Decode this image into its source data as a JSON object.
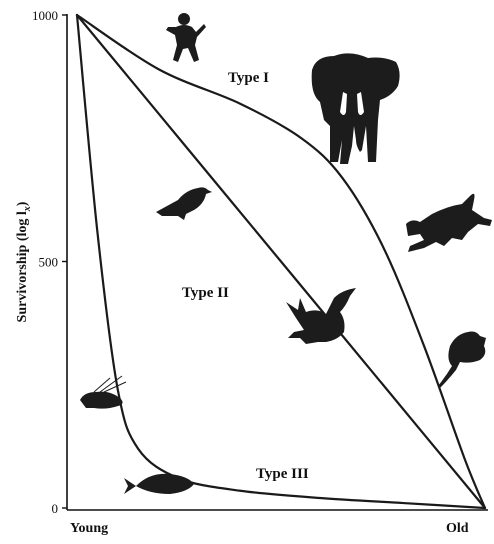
{
  "chart_data": {
    "type": "line",
    "title": "",
    "ylabel": "Survivorship (log l",
    "ylabel_sub": "x",
    "ylabel_close": ")",
    "xlabel": "",
    "x_tick_labels": [
      "Young",
      "Old"
    ],
    "y_ticks": [
      0,
      500,
      1000
    ],
    "y_tick_labels": [
      "0",
      "500",
      "1000"
    ],
    "ylim": [
      0,
      1000
    ],
    "xlim": [
      0,
      1
    ],
    "grid": false,
    "series": [
      {
        "name": "Type I",
        "x": [
          0,
          0.2,
          0.4,
          0.55,
          0.65,
          0.75,
          0.85,
          0.95,
          1.0
        ],
        "y": [
          1000,
          890,
          820,
          750,
          670,
          530,
          330,
          100,
          0
        ]
      },
      {
        "name": "Type II",
        "x": [
          0,
          0.25,
          0.5,
          0.75,
          1.0
        ],
        "y": [
          1000,
          750,
          500,
          250,
          0
        ]
      },
      {
        "name": "Type III",
        "x": [
          0,
          0.05,
          0.1,
          0.15,
          0.25,
          0.4,
          0.6,
          0.8,
          1.0
        ],
        "y": [
          1000,
          560,
          240,
          120,
          60,
          35,
          20,
          10,
          0
        ]
      }
    ],
    "animal_icons": [
      "human-icon",
      "elephant-icon",
      "songbird-icon",
      "cougar-icon",
      "hawk-icon",
      "rodent-icon",
      "shrimp-icon",
      "fish-icon"
    ]
  }
}
